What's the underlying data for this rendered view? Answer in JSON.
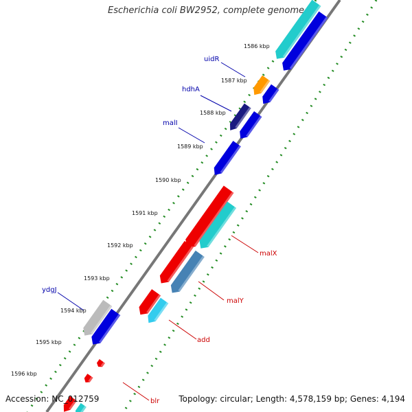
{
  "title": "Escherichia coli BW2952, complete genome",
  "accession": "Accession: NC_012759",
  "summary": "Topology: circular; Length: 4,578,159 bp; Genes: 4,194",
  "ticks": [
    "1586 kbp",
    "1587 kbp",
    "1588 kbp",
    "1589 kbp",
    "1590 kbp",
    "1591 kbp",
    "1592 kbp",
    "1593 kbp",
    "1594 kbp",
    "1595 kbp",
    "1596 kbp"
  ],
  "gene_labels": [
    {
      "name": "uidR",
      "color": "#0000aa"
    },
    {
      "name": "hdhA",
      "color": "#0000aa"
    },
    {
      "name": "malI",
      "color": "#0000aa"
    },
    {
      "name": "ydgJ",
      "color": "#0000aa"
    },
    {
      "name": "malX",
      "color": "#cc0000"
    },
    {
      "name": "malY",
      "color": "#cc0000"
    },
    {
      "name": "add",
      "color": "#cc0000"
    },
    {
      "name": "blr",
      "color": "#cc0000"
    }
  ],
  "colors": {
    "backbone": "#888888",
    "tick_marks": "#228b22",
    "feature_blue": "#0000dd",
    "feature_red": "#ee0000",
    "feature_cyan": "#22cccc",
    "feature_lightcyan": "#33ccee",
    "feature_orange": "#ff9900",
    "feature_navy": "#1a1a80",
    "feature_steel": "#4682b4",
    "feature_gray": "#bbbbbb"
  }
}
